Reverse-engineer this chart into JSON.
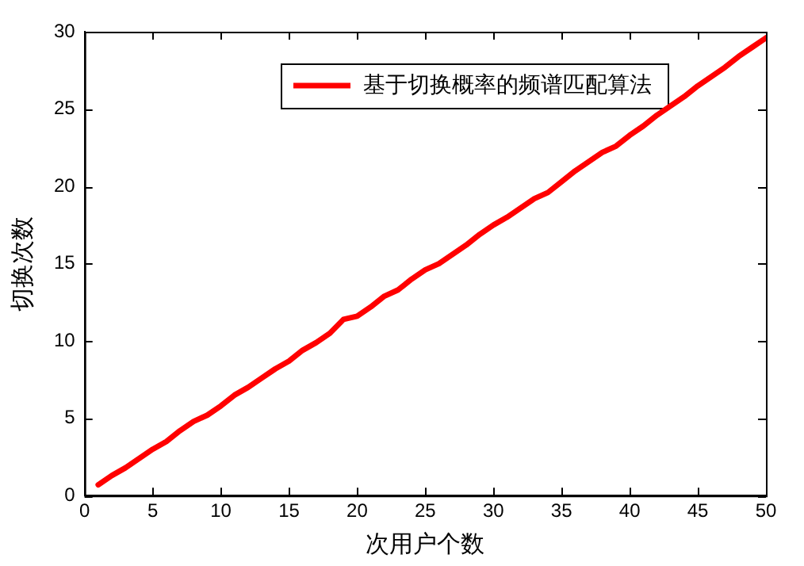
{
  "chart_data": {
    "type": "line",
    "xlabel": "次用户个数",
    "ylabel": "切换次数",
    "x": [
      1,
      2,
      3,
      4,
      5,
      6,
      7,
      8,
      9,
      10,
      11,
      12,
      13,
      14,
      15,
      16,
      17,
      18,
      19,
      20,
      21,
      22,
      23,
      24,
      25,
      26,
      27,
      28,
      29,
      30,
      31,
      32,
      33,
      34,
      35,
      36,
      37,
      38,
      39,
      40,
      41,
      42,
      43,
      44,
      45,
      46,
      47,
      48,
      49,
      50
    ],
    "series": [
      {
        "name": "基于切换概率的频谱匹配算法",
        "color": "#ff0000",
        "values": [
          0.7,
          1.3,
          1.8,
          2.4,
          3.0,
          3.5,
          4.2,
          4.8,
          5.2,
          5.8,
          6.5,
          7.0,
          7.6,
          8.2,
          8.7,
          9.4,
          9.9,
          10.5,
          11.4,
          11.6,
          12.2,
          12.9,
          13.3,
          14.0,
          14.6,
          15.0,
          15.6,
          16.2,
          16.9,
          17.5,
          18.0,
          18.6,
          19.2,
          19.6,
          20.3,
          21.0,
          21.6,
          22.2,
          22.6,
          23.3,
          23.9,
          24.6,
          25.2,
          25.8,
          26.5,
          27.1,
          27.7,
          28.4,
          29.0,
          29.6
        ]
      }
    ],
    "xlim": [
      0,
      50
    ],
    "xticks": [
      0,
      5,
      10,
      15,
      20,
      25,
      30,
      35,
      40,
      45,
      50
    ],
    "ylim": [
      0,
      30
    ],
    "yticks": [
      0,
      5,
      10,
      15,
      20,
      25,
      30
    ],
    "grid": false,
    "legend": "top right",
    "marker": "none",
    "line_style": "solid"
  }
}
